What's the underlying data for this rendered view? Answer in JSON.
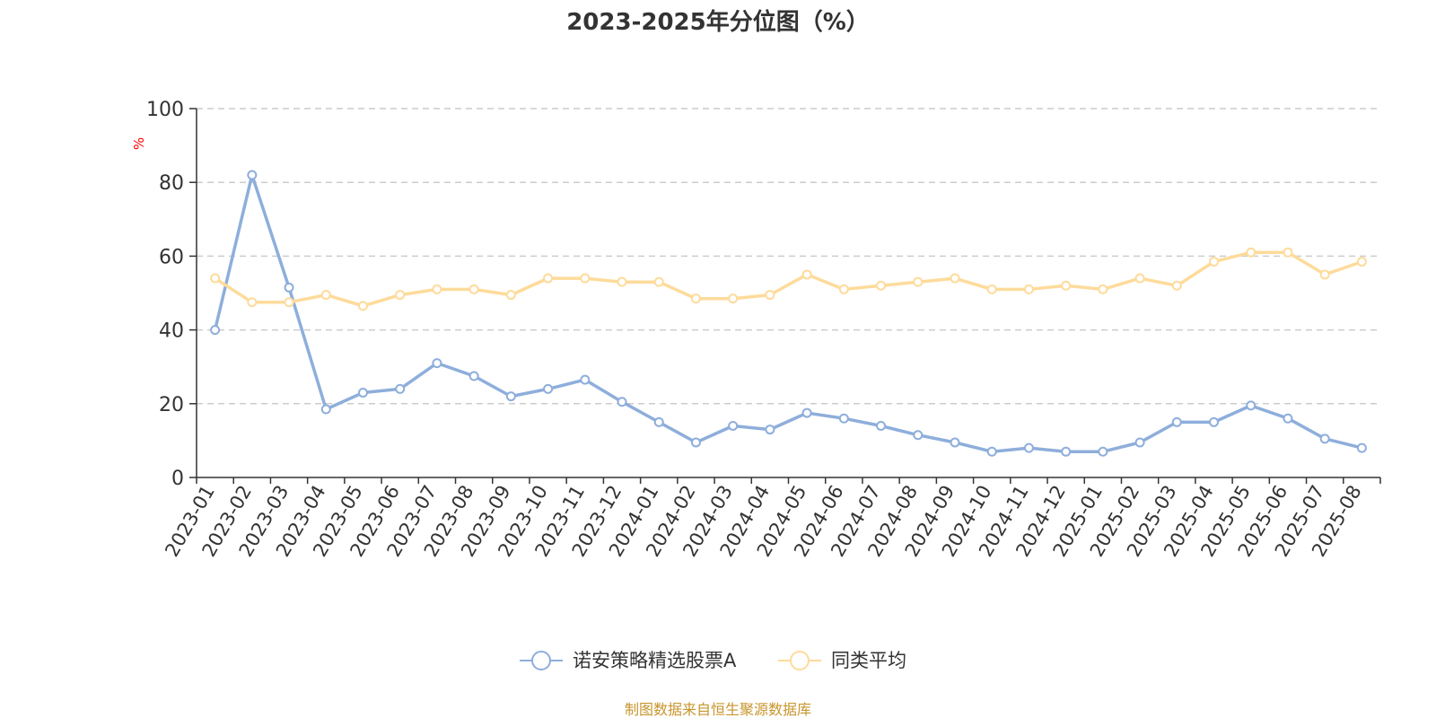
{
  "chart_data": {
    "type": "line",
    "title": "2023-2025年分位图（%）",
    "yunit": "%",
    "ylim": [
      0,
      100
    ],
    "yticks": [
      "0",
      "20",
      "40",
      "60",
      "80",
      "100"
    ],
    "grid": true,
    "legend_position": "bottom",
    "categories": [
      "2023-01",
      "2023-02",
      "2023-03",
      "2023-04",
      "2023-05",
      "2023-06",
      "2023-07",
      "2023-08",
      "2023-09",
      "2023-10",
      "2023-11",
      "2023-12",
      "2024-01",
      "2024-02",
      "2024-03",
      "2024-04",
      "2024-05",
      "2024-06",
      "2024-07",
      "2024-08",
      "2024-09",
      "2024-10",
      "2024-11",
      "2024-12",
      "2025-01",
      "2025-02",
      "2025-03",
      "2025-04",
      "2025-05",
      "2025-06",
      "2025-07",
      "2025-08"
    ],
    "series": [
      {
        "name": "诺安策略精选股票A",
        "color": "#8eaedb",
        "values": [
          40,
          82,
          51.5,
          18.5,
          23,
          24,
          31,
          27.5,
          22,
          24,
          26.5,
          20.5,
          15,
          9.5,
          14,
          13,
          17.5,
          16,
          14,
          11.5,
          9.5,
          7,
          8,
          7,
          7,
          9.5,
          15,
          15,
          19.5,
          16,
          10.5,
          8
        ]
      },
      {
        "name": "同类平均",
        "color": "#fedb9b",
        "values": [
          54,
          47.5,
          47.5,
          49.5,
          46.5,
          49.5,
          51,
          51,
          49.5,
          54,
          54,
          53,
          53,
          48.5,
          48.5,
          49.5,
          55,
          51,
          52,
          53,
          54,
          51,
          51,
          52,
          51,
          54,
          52,
          58.5,
          61,
          61,
          55,
          58.5
        ]
      }
    ]
  },
  "source_text": "制图数据来自恒生聚源数据库",
  "colors": {
    "unit": "#ff0000",
    "source": "#c8952c",
    "grid": "#cccccc",
    "axis": "#333333"
  }
}
